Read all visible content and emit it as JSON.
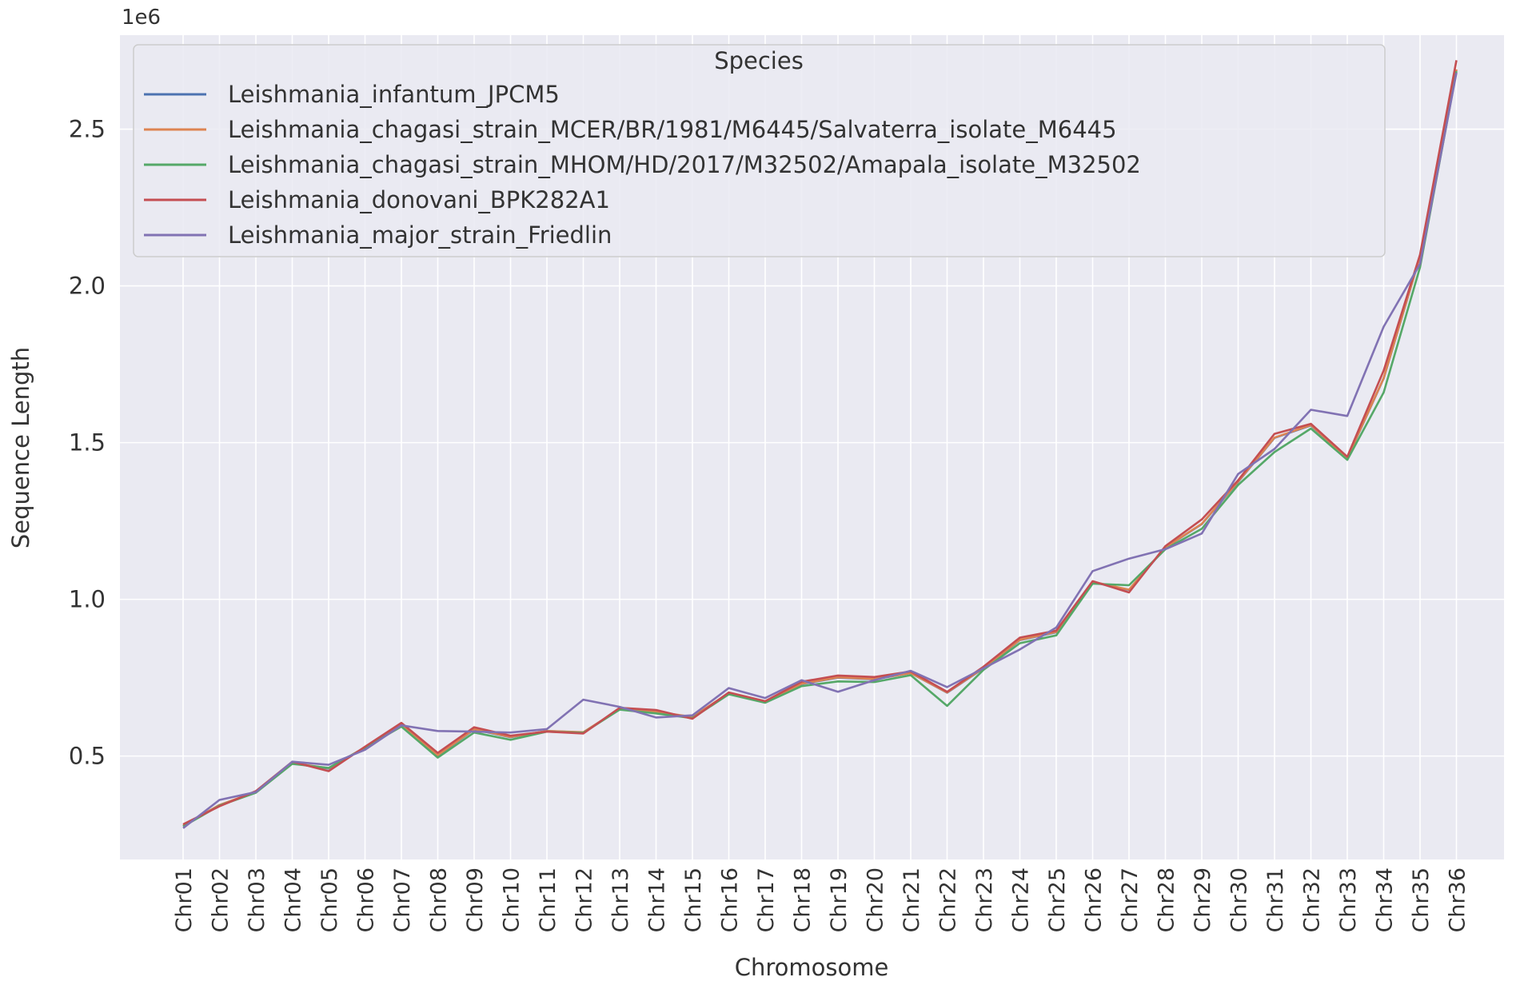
{
  "chart_data": {
    "type": "line",
    "title": "",
    "xlabel": "Chromosome",
    "ylabel": "Sequence Length",
    "y_offset_label": "1e6",
    "y_scale_note": "values in units of 1e6",
    "ylim": [
      0.17,
      2.8
    ],
    "yticks": [
      0.5,
      1.0,
      1.5,
      2.0,
      2.5
    ],
    "ytick_labels": [
      "0.5",
      "1.0",
      "1.5",
      "2.0",
      "2.5"
    ],
    "grid": true,
    "legend_position": "upper-left",
    "legend_title": "Species",
    "categories": [
      "Chr01",
      "Chr02",
      "Chr03",
      "Chr04",
      "Chr05",
      "Chr06",
      "Chr07",
      "Chr08",
      "Chr09",
      "Chr10",
      "Chr11",
      "Chr12",
      "Chr13",
      "Chr14",
      "Chr15",
      "Chr16",
      "Chr17",
      "Chr18",
      "Chr19",
      "Chr20",
      "Chr21",
      "Chr22",
      "Chr23",
      "Chr24",
      "Chr25",
      "Chr26",
      "Chr27",
      "Chr28",
      "Chr29",
      "Chr30",
      "Chr31",
      "Chr32",
      "Chr33",
      "Chr34",
      "Chr35",
      "Chr36"
    ],
    "series": [
      {
        "name": "Leishmania_infantum_JPCM5",
        "color": "#4c72b0",
        "values": [
          0.277,
          0.343,
          0.385,
          0.477,
          0.46,
          0.528,
          0.6,
          0.502,
          0.585,
          0.56,
          0.58,
          0.575,
          0.65,
          0.64,
          0.624,
          0.7,
          0.672,
          0.73,
          0.75,
          0.745,
          0.765,
          0.702,
          0.78,
          0.87,
          0.895,
          1.055,
          1.03,
          1.165,
          1.24,
          1.375,
          1.515,
          1.555,
          1.45,
          1.705,
          2.095,
          2.69
        ]
      },
      {
        "name": "Leishmania_chagasi_strain_MCER/BR/1981/M6445/Salvaterra_isolate_M6445",
        "color": "#dd8452",
        "values": [
          0.278,
          0.344,
          0.386,
          0.478,
          0.461,
          0.528,
          0.601,
          0.503,
          0.586,
          0.561,
          0.58,
          0.576,
          0.65,
          0.641,
          0.625,
          0.701,
          0.673,
          0.731,
          0.751,
          0.746,
          0.765,
          0.703,
          0.781,
          0.871,
          0.896,
          1.056,
          1.031,
          1.166,
          1.241,
          1.376,
          1.516,
          1.556,
          1.451,
          1.706,
          2.096,
          2.691
        ]
      },
      {
        "name": "Leishmania_chagasi_strain_MHOM/HD/2017/M32502/Amapala_isolate_M32502",
        "color": "#55a868",
        "values": [
          0.275,
          0.342,
          0.383,
          0.475,
          0.462,
          0.527,
          0.594,
          0.495,
          0.575,
          0.552,
          0.578,
          0.574,
          0.648,
          0.636,
          0.621,
          0.697,
          0.67,
          0.723,
          0.738,
          0.736,
          0.758,
          0.66,
          0.775,
          0.86,
          0.885,
          1.05,
          1.045,
          1.16,
          1.225,
          1.365,
          1.47,
          1.545,
          1.445,
          1.66,
          2.06,
          2.685
        ]
      },
      {
        "name": "Leishmania_donovani_BPK282A1",
        "color": "#c44e52",
        "values": [
          0.282,
          0.34,
          0.388,
          0.482,
          0.452,
          0.53,
          0.606,
          0.51,
          0.592,
          0.565,
          0.578,
          0.572,
          0.654,
          0.647,
          0.619,
          0.703,
          0.675,
          0.737,
          0.757,
          0.752,
          0.77,
          0.705,
          0.785,
          0.878,
          0.9,
          1.058,
          1.022,
          1.17,
          1.255,
          1.38,
          1.528,
          1.56,
          1.455,
          1.73,
          2.1,
          2.72
        ]
      },
      {
        "name": "Leishmania_major_strain_Friedlin",
        "color": "#8172b3",
        "values": [
          0.27,
          0.36,
          0.385,
          0.482,
          0.472,
          0.52,
          0.598,
          0.58,
          0.578,
          0.575,
          0.586,
          0.68,
          0.657,
          0.623,
          0.63,
          0.717,
          0.685,
          0.742,
          0.705,
          0.742,
          0.772,
          0.72,
          0.78,
          0.84,
          0.91,
          1.09,
          1.13,
          1.16,
          1.21,
          1.4,
          1.48,
          1.605,
          1.585,
          1.87,
          2.07,
          2.68
        ]
      }
    ]
  }
}
